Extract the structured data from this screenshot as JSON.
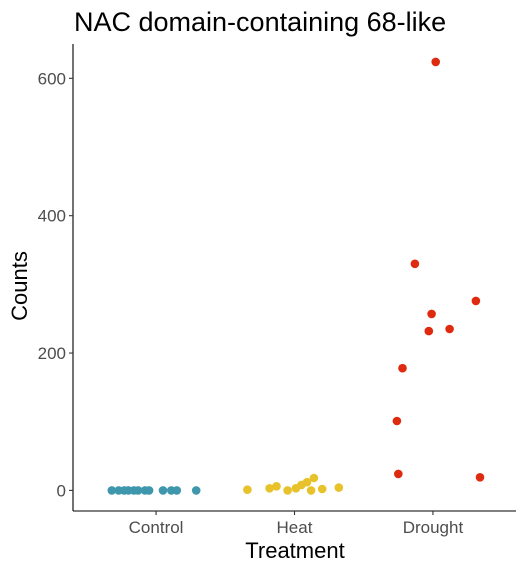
{
  "chart_data": {
    "type": "scatter",
    "title": "NAC domain-containing 68-like",
    "xlabel": "Treatment",
    "ylabel": "Counts",
    "categories": [
      "Control",
      "Heat",
      "Drought"
    ],
    "ylim": [
      -30,
      650
    ],
    "yticks": [
      0,
      200,
      400,
      600
    ],
    "grid": false,
    "legend": "none",
    "series": [
      {
        "category": "Control",
        "color": "#3f97ad",
        "points": [
          {
            "x": -0.32,
            "y": 0
          },
          {
            "x": -0.27,
            "y": 0
          },
          {
            "x": -0.23,
            "y": 0
          },
          {
            "x": -0.2,
            "y": 0
          },
          {
            "x": -0.16,
            "y": 0
          },
          {
            "x": -0.13,
            "y": 0
          },
          {
            "x": -0.08,
            "y": 0
          },
          {
            "x": -0.05,
            "y": 0
          },
          {
            "x": 0.05,
            "y": 0
          },
          {
            "x": 0.11,
            "y": 0
          },
          {
            "x": 0.15,
            "y": 0
          },
          {
            "x": 0.29,
            "y": 0
          }
        ]
      },
      {
        "category": "Heat",
        "color": "#e8c22b",
        "points": [
          {
            "x": -0.34,
            "y": 1
          },
          {
            "x": -0.18,
            "y": 3
          },
          {
            "x": -0.13,
            "y": 6
          },
          {
            "x": -0.05,
            "y": 0
          },
          {
            "x": 0.01,
            "y": 3
          },
          {
            "x": 0.05,
            "y": 8
          },
          {
            "x": 0.09,
            "y": 12
          },
          {
            "x": 0.12,
            "y": 0
          },
          {
            "x": 0.14,
            "y": 18
          },
          {
            "x": 0.2,
            "y": 2
          },
          {
            "x": 0.32,
            "y": 4
          }
        ]
      },
      {
        "category": "Drought",
        "color": "#de2b0f",
        "points": [
          {
            "x": -0.26,
            "y": 101
          },
          {
            "x": -0.25,
            "y": 24
          },
          {
            "x": -0.22,
            "y": 178
          },
          {
            "x": -0.13,
            "y": 330
          },
          {
            "x": -0.03,
            "y": 232
          },
          {
            "x": -0.01,
            "y": 257
          },
          {
            "x": 0.02,
            "y": 624
          },
          {
            "x": 0.12,
            "y": 235
          },
          {
            "x": 0.31,
            "y": 276
          },
          {
            "x": 0.34,
            "y": 19
          }
        ]
      }
    ]
  }
}
